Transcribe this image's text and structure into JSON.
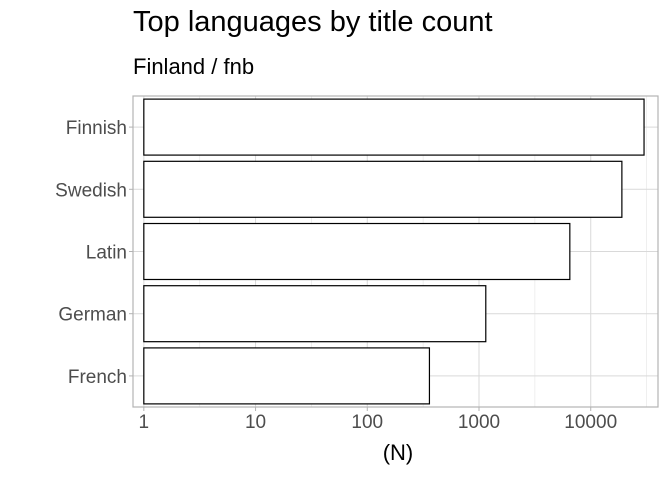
{
  "chart_data": {
    "type": "bar",
    "orientation": "horizontal",
    "title": "Top languages by title count",
    "subtitle": "Finland / fnb",
    "xlabel": "(N)",
    "ylabel": "",
    "x_scale": "log10",
    "xlim": [
      0.8,
      40000
    ],
    "x_ticks": [
      1,
      10,
      100,
      1000,
      10000
    ],
    "x_tick_labels": [
      "1",
      "10",
      "100",
      "1000",
      "10000"
    ],
    "categories": [
      "Finnish",
      "Swedish",
      "Latin",
      "German",
      "French"
    ],
    "values": [
      30000,
      19000,
      6500,
      1150,
      360
    ],
    "grid": true,
    "legend": "none",
    "colors": {
      "bar_fill": "#ffffff",
      "bar_stroke": "#000000",
      "grid_major": "#d9d9d9",
      "grid_minor": "#ebebeb",
      "panel_border": "#b3b3b3",
      "tick_text": "#4d4d4d"
    }
  }
}
